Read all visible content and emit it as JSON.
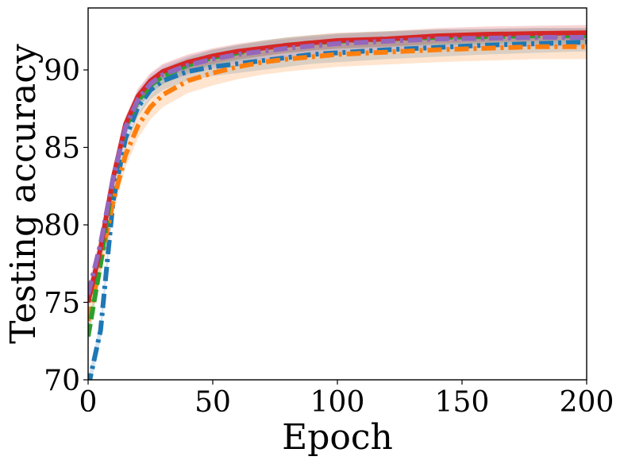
{
  "chart_data": {
    "type": "line",
    "title": "",
    "xlabel": "Epoch",
    "ylabel": "Testing accuracy",
    "xlim": [
      0,
      200
    ],
    "ylim": [
      70,
      94
    ],
    "x_ticks": [
      0,
      50,
      100,
      150,
      200
    ],
    "y_ticks": [
      70,
      75,
      80,
      85,
      90
    ],
    "grid": false,
    "legend": "none",
    "x": [
      0,
      5,
      10,
      15,
      20,
      25,
      30,
      40,
      50,
      60,
      70,
      80,
      90,
      100,
      120,
      140,
      160,
      180,
      200
    ],
    "series": [
      {
        "color": "#1f77b4",
        "style": "dashdot",
        "values": [
          69.5,
          73.2,
          81.5,
          85.6,
          87.6,
          88.7,
          89.3,
          89.9,
          90.2,
          90.4,
          90.6,
          90.8,
          91.0,
          91.1,
          91.3,
          91.45,
          91.6,
          91.7,
          91.8
        ],
        "band": 0.6
      },
      {
        "color": "#ff7f0e",
        "style": "dashdot",
        "values": [
          73.8,
          77.5,
          81.5,
          84.5,
          86.4,
          87.6,
          88.4,
          89.3,
          89.8,
          90.2,
          90.5,
          90.7,
          90.85,
          91.0,
          91.15,
          91.3,
          91.4,
          91.5,
          91.5
        ],
        "band": 0.8
      },
      {
        "color": "#2ca02c",
        "style": "dashed",
        "values": [
          72.8,
          77.5,
          83.0,
          86.3,
          88.0,
          89.0,
          89.6,
          90.3,
          90.8,
          91.1,
          91.4,
          91.6,
          91.75,
          91.85,
          92.0,
          92.1,
          92.15,
          92.2,
          92.2
        ],
        "band": 0.5
      },
      {
        "color": "#d62728",
        "style": "solid",
        "values": [
          75.0,
          78.5,
          83.0,
          86.5,
          88.3,
          89.3,
          89.9,
          90.5,
          90.9,
          91.2,
          91.4,
          91.6,
          91.75,
          91.9,
          92.0,
          92.2,
          92.3,
          92.35,
          92.4
        ],
        "band": 0.5
      },
      {
        "color": "#9467bd",
        "style": "dashdot",
        "values": [
          75.5,
          78.8,
          83.0,
          86.3,
          88.1,
          89.1,
          89.7,
          90.3,
          90.7,
          91.0,
          91.2,
          91.4,
          91.55,
          91.7,
          91.85,
          92.0,
          92.05,
          92.1,
          92.1
        ],
        "band": 0.6
      }
    ]
  }
}
